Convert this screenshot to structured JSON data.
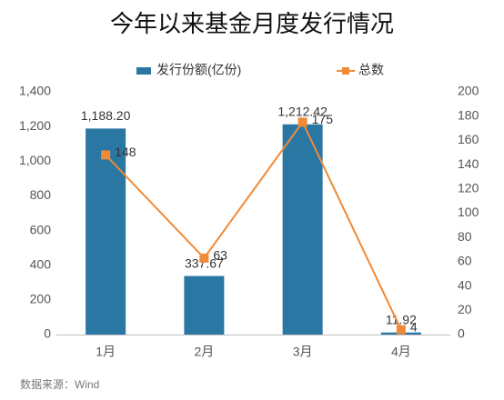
{
  "chart_data": {
    "type": "bar-line",
    "title": "今年以来基金月度发行情况",
    "source": "数据来源：Wind",
    "categories": [
      "1月",
      "2月",
      "3月",
      "4月"
    ],
    "series": [
      {
        "name": "发行份额(亿份)",
        "type": "bar",
        "color": "#2a77a3",
        "values": [
          1188.2,
          337.67,
          1212.42,
          11.92
        ],
        "value_labels": [
          "1,188.20",
          "337.67",
          "1,212.42",
          "11.92"
        ]
      },
      {
        "name": "总数",
        "type": "line",
        "axis": "y2",
        "color": "#ef8a37",
        "values": [
          148,
          63,
          175,
          4
        ]
      }
    ],
    "ylim": [
      0,
      1400
    ],
    "yticks": [
      0,
      200,
      400,
      600,
      800,
      {
        "value": 1000,
        "label": "1,000"
      },
      {
        "value": 1200,
        "label": "1,200"
      },
      {
        "value": 1400,
        "label": "1,400"
      }
    ],
    "y2lim": [
      0,
      200
    ],
    "y2ticks": [
      0,
      20,
      40,
      60,
      80,
      100,
      120,
      140,
      160,
      180,
      200
    ],
    "grid": false,
    "legend": "top"
  }
}
